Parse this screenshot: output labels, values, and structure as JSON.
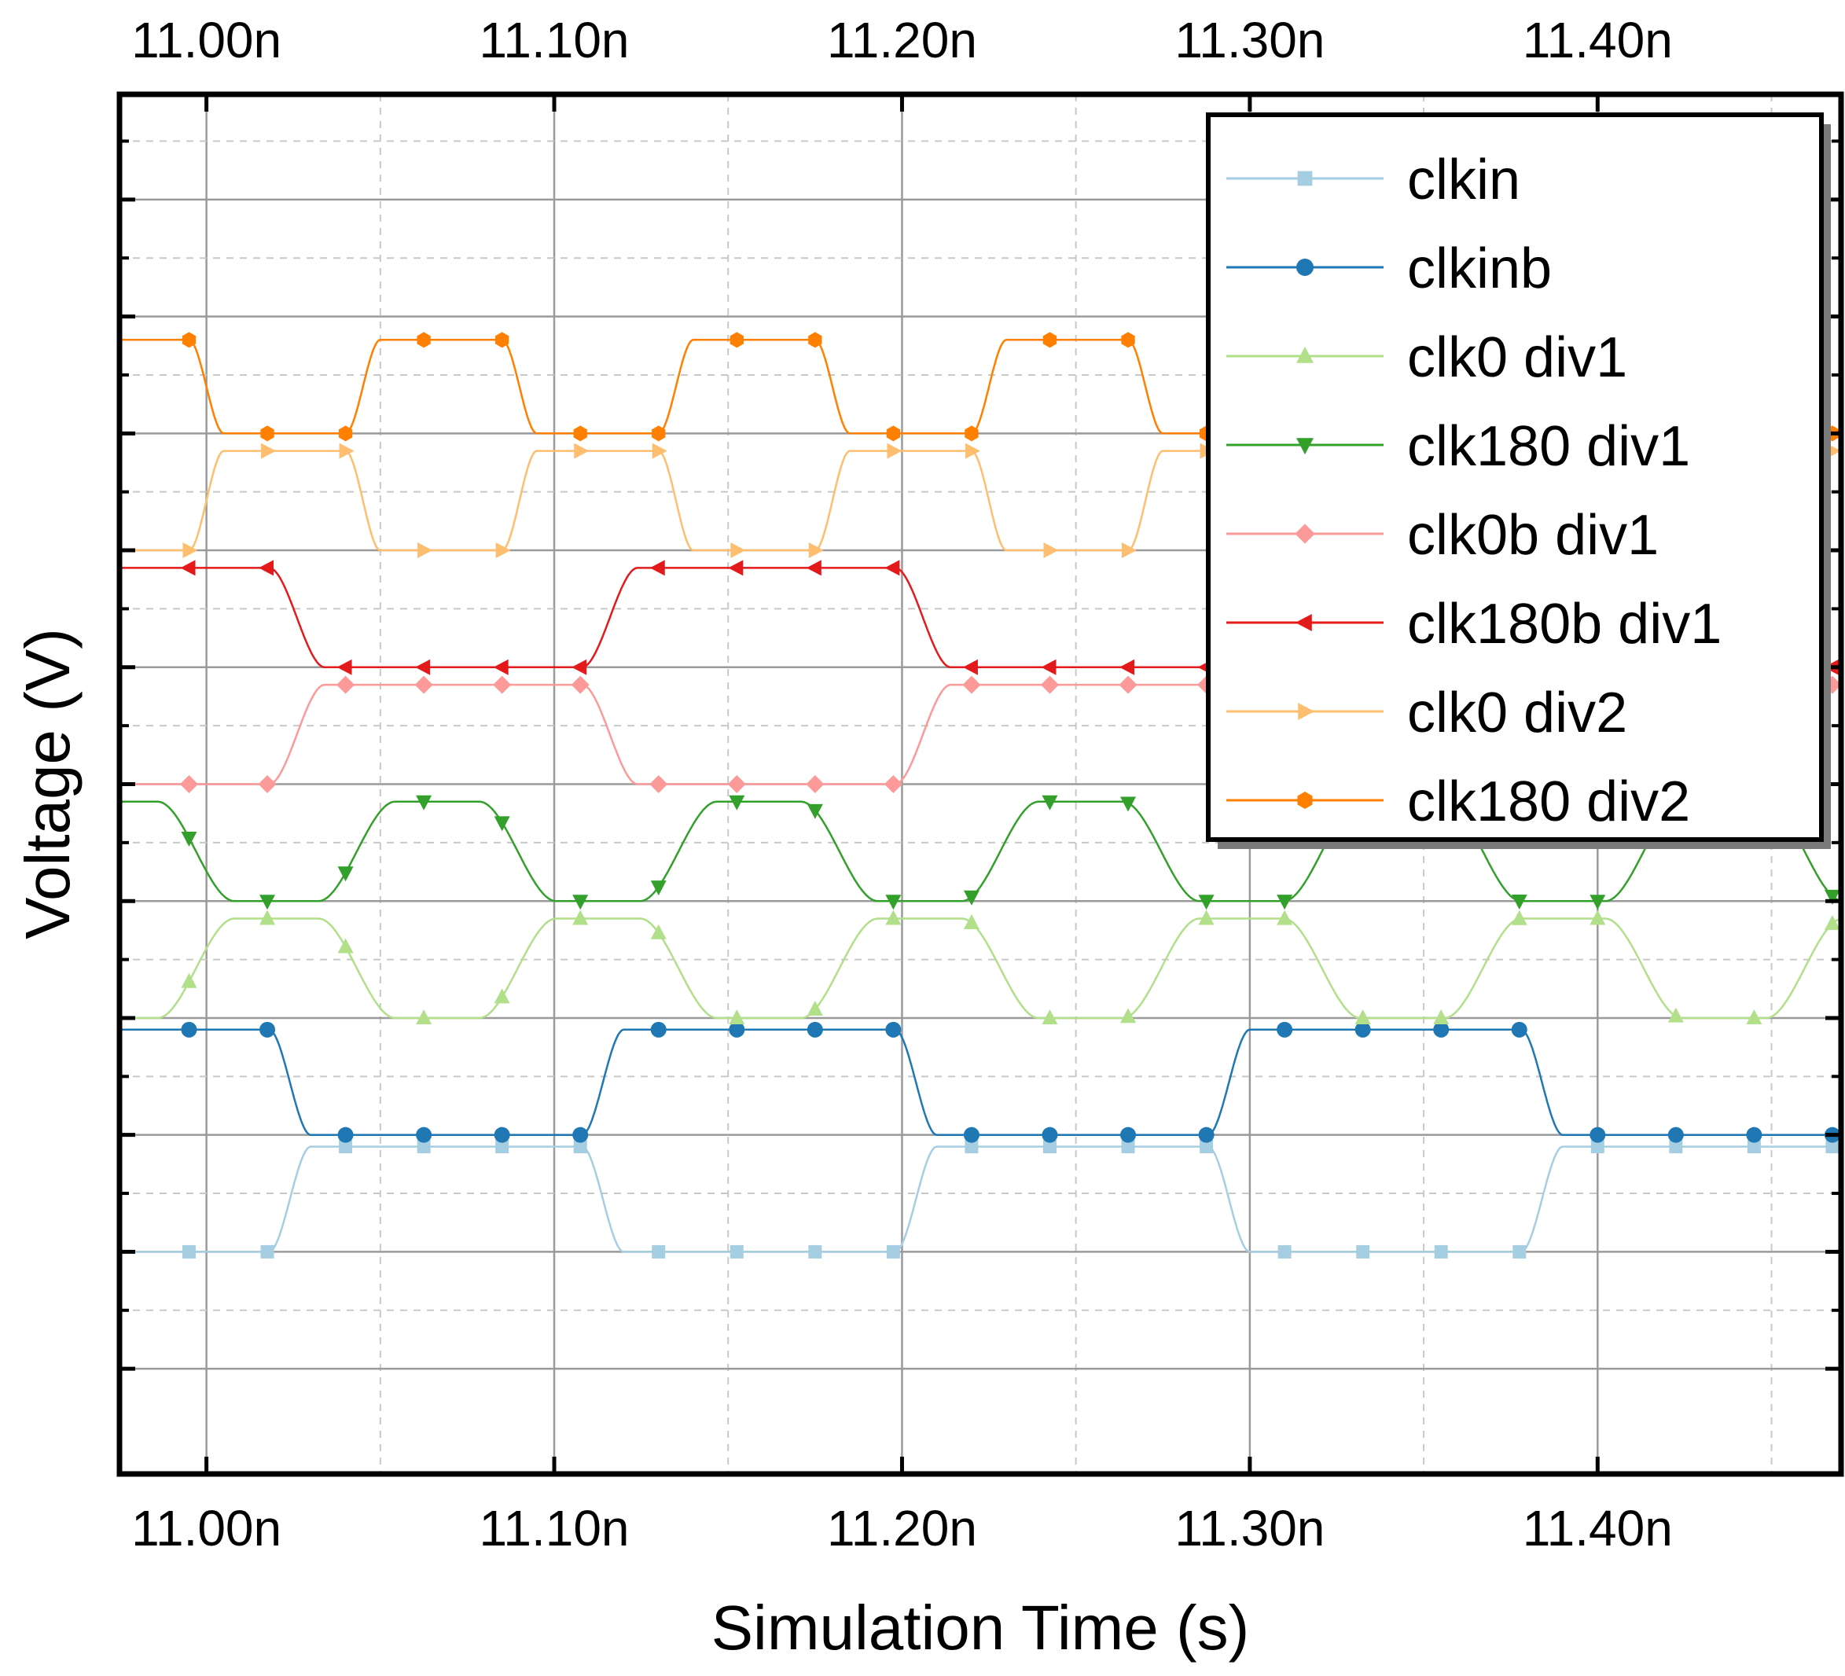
{
  "chart_data": {
    "type": "line",
    "xlabel": "Simulation Time (s)",
    "ylabel": "Voltage (V)",
    "xlim": [
      10.975,
      11.47
    ],
    "ylim": [
      -1.9,
      9.9
    ],
    "x_ticks": [
      {
        "value": 11.0,
        "label": "11.00n"
      },
      {
        "value": 11.1,
        "label": "11.10n"
      },
      {
        "value": 11.2,
        "label": "11.20n"
      },
      {
        "value": 11.3,
        "label": "11.30n"
      },
      {
        "value": 11.4,
        "label": "11.40n"
      }
    ],
    "y_ticks": [
      -1,
      0,
      1,
      2,
      3,
      4,
      5,
      6,
      7,
      8,
      9
    ],
    "grid": true,
    "legend_position": "top-right",
    "marker_x": [
      10.9725,
      10.995,
      11.0175,
      11.04,
      11.0625,
      11.085,
      11.1075,
      11.13,
      11.1525,
      11.175,
      11.1975,
      11.22,
      11.2425,
      11.265,
      11.2875,
      11.31,
      11.3325,
      11.355,
      11.3775,
      11.4,
      11.4225,
      11.445,
      11.4675
    ],
    "series": [
      {
        "name": "clkin",
        "color": "#a6cee3",
        "marker": "square",
        "levels": [
          0,
          0.9
        ],
        "period": 0.18,
        "t0": 11.018,
        "start_high": false,
        "rise": 0.012
      },
      {
        "name": "clkinb",
        "color": "#1f78b4",
        "marker": "circle",
        "levels": [
          1,
          1.9
        ],
        "period": 0.18,
        "t0": 11.018,
        "start_high": true,
        "rise": 0.012
      },
      {
        "name": "clk0 div1",
        "color": "#b2df8a",
        "marker": "triangle-up",
        "levels": [
          2,
          2.85
        ],
        "period": 0.0925,
        "t0": 10.986,
        "start_high": false,
        "rise": 0.022
      },
      {
        "name": "clk180 div1",
        "color": "#33a02c",
        "marker": "triangle-down",
        "levels": [
          3,
          3.85
        ],
        "period": 0.0925,
        "t0": 10.986,
        "start_high": true,
        "rise": 0.022
      },
      {
        "name": "clk0b div1",
        "color": "#fb9a99",
        "marker": "diamond",
        "levels": [
          4,
          4.85
        ],
        "period": 0.18,
        "t0": 11.018,
        "start_high": false,
        "rise": 0.016
      },
      {
        "name": "clk180b div1",
        "color": "#e31a1c",
        "marker": "triangle-left",
        "levels": [
          5,
          5.85
        ],
        "period": 0.18,
        "t0": 11.018,
        "start_high": true,
        "rise": 0.016
      },
      {
        "name": "clk0 div2",
        "color": "#fdbf6f",
        "marker": "triangle-right",
        "levels": [
          6,
          6.85
        ],
        "period": 0.09,
        "t0": 10.995,
        "start_high": false,
        "rise": 0.01
      },
      {
        "name": "clk180 div2",
        "color": "#ff7f00",
        "marker": "hexagon",
        "levels": [
          7,
          7.8
        ],
        "period": 0.09,
        "t0": 10.995,
        "start_high": true,
        "rise": 0.01
      }
    ]
  }
}
